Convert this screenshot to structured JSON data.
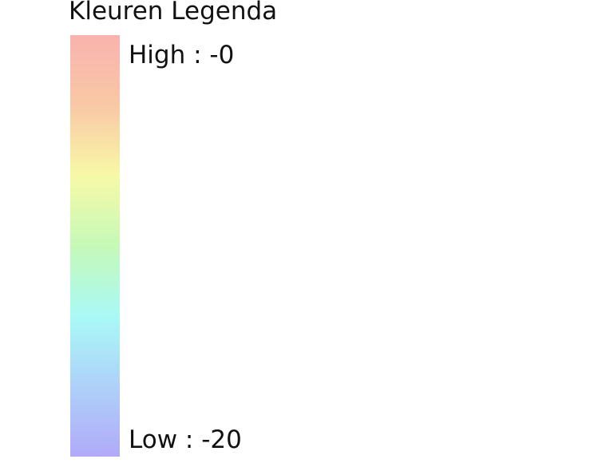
{
  "legend": {
    "title": "Kleuren Legenda",
    "high_label": "High : -0",
    "low_label": "Low : -20",
    "high_value": 0,
    "low_value": -20,
    "ramp_colors": [
      "#f9b3ae",
      "#f9c8a6",
      "#f7f9a6",
      "#c6f9b8",
      "#a9f9f6",
      "#aed1f9",
      "#b1aaf9"
    ]
  }
}
